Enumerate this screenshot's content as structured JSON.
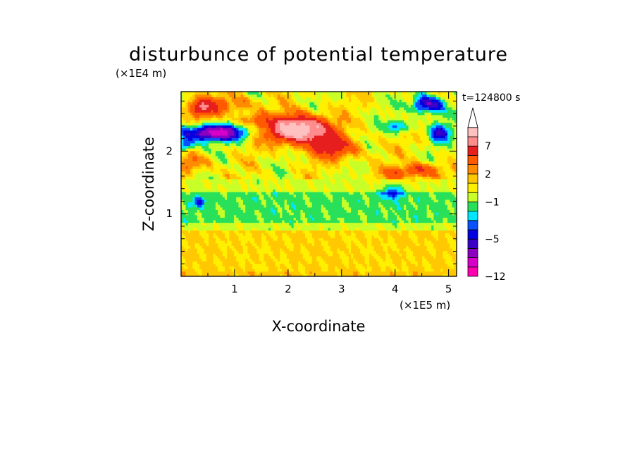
{
  "chart_data": {
    "type": "heatmap",
    "title": "disturbunce of potential temperature",
    "time_label": "t=124800 s",
    "xlabel": "X-coordinate",
    "ylabel": "Z-coordinate",
    "x_unit": "(×1E5 m)",
    "y_unit": "(×1E4 m)",
    "xlim": [
      0,
      5.15
    ],
    "ylim": [
      0,
      2.95
    ],
    "x_ticks": [
      1,
      2,
      3,
      4,
      5
    ],
    "y_ticks": [
      1,
      2
    ],
    "colorbar": {
      "levels": [
        -12,
        -10,
        -8,
        -6,
        -5,
        -4,
        -3,
        -2,
        -1,
        0,
        1,
        2,
        3,
        5,
        7,
        9,
        11
      ],
      "colors": [
        "#ff00b0",
        "#d800c8",
        "#8c00c0",
        "#3a00c8",
        "#0000e0",
        "#0a50ff",
        "#00e6ff",
        "#28e05a",
        "#c8ff28",
        "#fff000",
        "#ffc800",
        "#ff8c00",
        "#ff5a00",
        "#e61e1e",
        "#ff8c8c",
        "#ffc0c0"
      ],
      "tick_labels": [
        "-12",
        "-5",
        "-1",
        "2",
        "7"
      ],
      "tick_values": [
        -12,
        -5,
        -1,
        2,
        7
      ],
      "extend": "max"
    },
    "grid": false
  }
}
